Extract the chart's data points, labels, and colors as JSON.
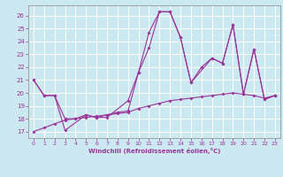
{
  "xlabel": "Windchill (Refroidissement éolien,°C)",
  "bg_color": "#cce8f0",
  "line_color": "#993399",
  "grid_color": "#ffffff",
  "xlim": [
    -0.5,
    23.5
  ],
  "ylim": [
    16.5,
    26.8
  ],
  "yticks": [
    17,
    18,
    19,
    20,
    21,
    22,
    23,
    24,
    25,
    26
  ],
  "xticks": [
    0,
    1,
    2,
    3,
    4,
    5,
    6,
    7,
    8,
    9,
    10,
    11,
    12,
    13,
    14,
    15,
    16,
    17,
    18,
    19,
    20,
    21,
    22,
    23
  ],
  "series1_x": [
    0,
    1,
    2,
    3,
    4,
    5,
    6,
    7,
    8,
    9,
    10,
    11,
    12,
    13,
    14,
    15,
    16,
    17,
    18,
    19,
    20,
    21,
    22,
    23
  ],
  "series1_y": [
    21.0,
    19.8,
    19.8,
    18.0,
    18.0,
    18.3,
    18.1,
    18.3,
    18.5,
    18.6,
    21.6,
    24.7,
    26.3,
    26.3,
    24.3,
    20.8,
    22.0,
    22.7,
    22.3,
    25.3,
    19.9,
    23.4,
    19.5,
    19.8
  ],
  "series2_x": [
    0,
    1,
    2,
    3,
    5,
    6,
    7,
    9,
    10,
    11,
    12,
    13,
    14,
    15,
    17,
    18,
    19,
    20,
    21,
    22,
    23
  ],
  "series2_y": [
    21.0,
    19.8,
    19.8,
    17.1,
    18.3,
    18.1,
    18.1,
    19.4,
    21.6,
    23.5,
    26.3,
    26.3,
    24.3,
    20.8,
    22.7,
    22.3,
    25.3,
    19.9,
    23.4,
    19.5,
    19.8
  ],
  "series3_x": [
    0,
    1,
    2,
    3,
    4,
    5,
    6,
    7,
    8,
    9,
    10,
    11,
    12,
    13,
    14,
    15,
    16,
    17,
    18,
    19,
    20,
    21,
    22,
    23
  ],
  "series3_y": [
    17.0,
    17.3,
    17.6,
    17.9,
    18.0,
    18.1,
    18.2,
    18.3,
    18.4,
    18.5,
    18.8,
    19.0,
    19.2,
    19.4,
    19.5,
    19.6,
    19.7,
    19.8,
    19.9,
    20.0,
    19.9,
    19.8,
    19.6,
    19.8
  ]
}
